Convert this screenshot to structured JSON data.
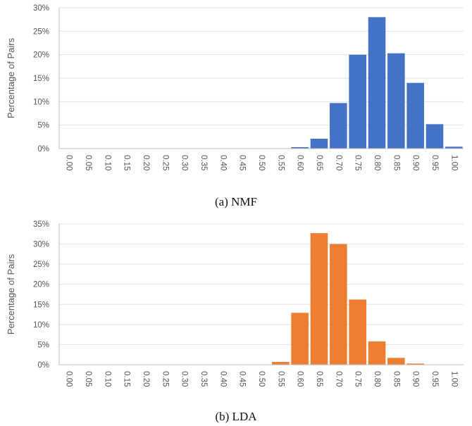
{
  "chart_data": [
    {
      "type": "bar",
      "caption": "(a) NMF",
      "ylabel": "Percentage of Pairs",
      "color": "#4472c4",
      "ylim": [
        0,
        30
      ],
      "yticks": [
        "0%",
        "5%",
        "10%",
        "15%",
        "20%",
        "25%",
        "30%"
      ],
      "categories": [
        "0.00",
        "0.05",
        "0.10",
        "0.15",
        "0.20",
        "0.25",
        "0.30",
        "0.35",
        "0.40",
        "0.45",
        "0.50",
        "0.55",
        "0.60",
        "0.65",
        "0.70",
        "0.75",
        "0.80",
        "0.85",
        "0.90",
        "0.95",
        "1.00"
      ],
      "values": [
        0,
        0,
        0,
        0,
        0,
        0,
        0,
        0,
        0,
        0,
        0,
        0,
        0.3,
        2.1,
        9.7,
        20.0,
        28.0,
        20.3,
        14.0,
        5.2,
        0.4
      ],
      "grid": true
    },
    {
      "type": "bar",
      "caption": "(b) LDA",
      "ylabel": "Percentage of Pairs",
      "color": "#ed7d31",
      "ylim": [
        0,
        35
      ],
      "yticks": [
        "0%",
        "5%",
        "10%",
        "15%",
        "20%",
        "25%",
        "30%",
        "35%"
      ],
      "categories": [
        "0.00",
        "0.05",
        "0.10",
        "0.15",
        "0.20",
        "0.25",
        "0.30",
        "0.35",
        "0.40",
        "0.45",
        "0.50",
        "0.55",
        "0.60",
        "0.65",
        "0.70",
        "0.75",
        "0.80",
        "0.85",
        "0.90",
        "0.95",
        "1.00"
      ],
      "values": [
        0,
        0,
        0,
        0,
        0,
        0,
        0,
        0,
        0,
        0,
        0,
        0.7,
        12.9,
        32.7,
        30.0,
        16.2,
        5.8,
        1.7,
        0.3,
        0,
        0
      ],
      "grid": true
    }
  ]
}
